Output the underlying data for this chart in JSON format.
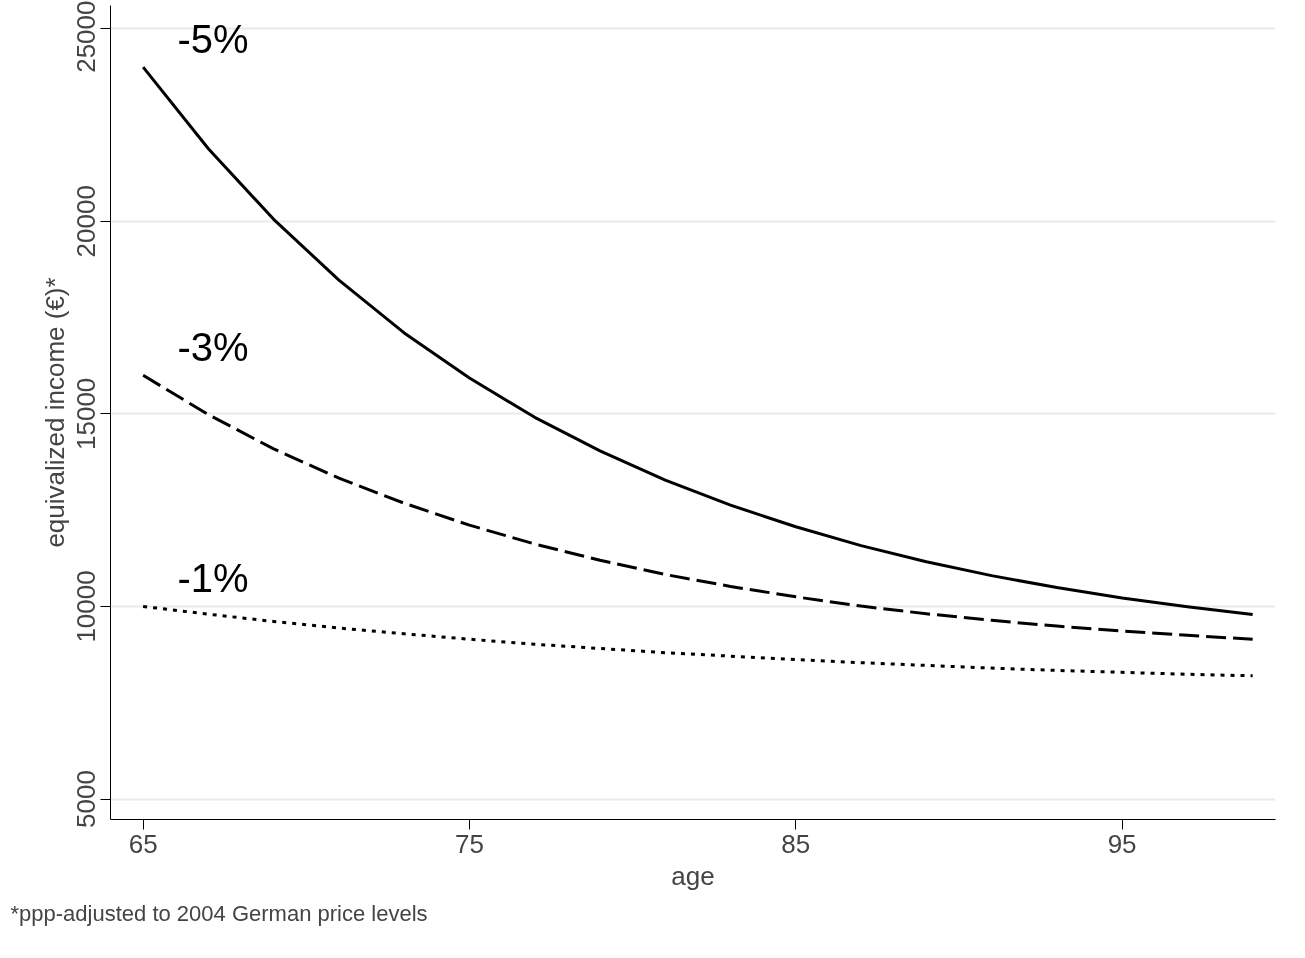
{
  "chart_data": {
    "type": "line",
    "xlabel": "age",
    "ylabel": "equivalized income (€)*",
    "x": [
      65,
      67,
      69,
      71,
      73,
      75,
      77,
      79,
      81,
      83,
      85,
      87,
      89,
      91,
      93,
      95,
      97,
      99
    ],
    "series": [
      {
        "name": "-5%",
        "color": "#000000",
        "line_style": "solid",
        "values": [
          24000,
          21880,
          20050,
          18470,
          17100,
          15930,
          14910,
          14040,
          13280,
          12630,
          12070,
          11580,
          11160,
          10800,
          10490,
          10220,
          9990,
          9790
        ]
      },
      {
        "name": "-3%",
        "color": "#000000",
        "line_style": "dashed",
        "values": [
          16000,
          14980,
          14090,
          13330,
          12680,
          12110,
          11620,
          11200,
          10830,
          10520,
          10250,
          10010,
          9810,
          9640,
          9490,
          9360,
          9250,
          9150
        ]
      },
      {
        "name": "-1%",
        "color": "#000000",
        "line_style": "dotted",
        "values": [
          10000,
          9800,
          9610,
          9440,
          9290,
          9150,
          9020,
          8910,
          8800,
          8710,
          8620,
          8540,
          8470,
          8400,
          8340,
          8290,
          8240,
          8200
        ]
      }
    ],
    "xlim": [
      64,
      99.7
    ],
    "xticks": [
      65,
      75,
      85,
      95
    ],
    "ylim": [
      4470,
      25600
    ],
    "yticks": [
      5000,
      10000,
      15000,
      20000,
      25000
    ],
    "grid": "y",
    "legend": false,
    "marker": "none",
    "annotations": [
      "*ppp-adjusted to 2004 German price levels"
    ]
  }
}
